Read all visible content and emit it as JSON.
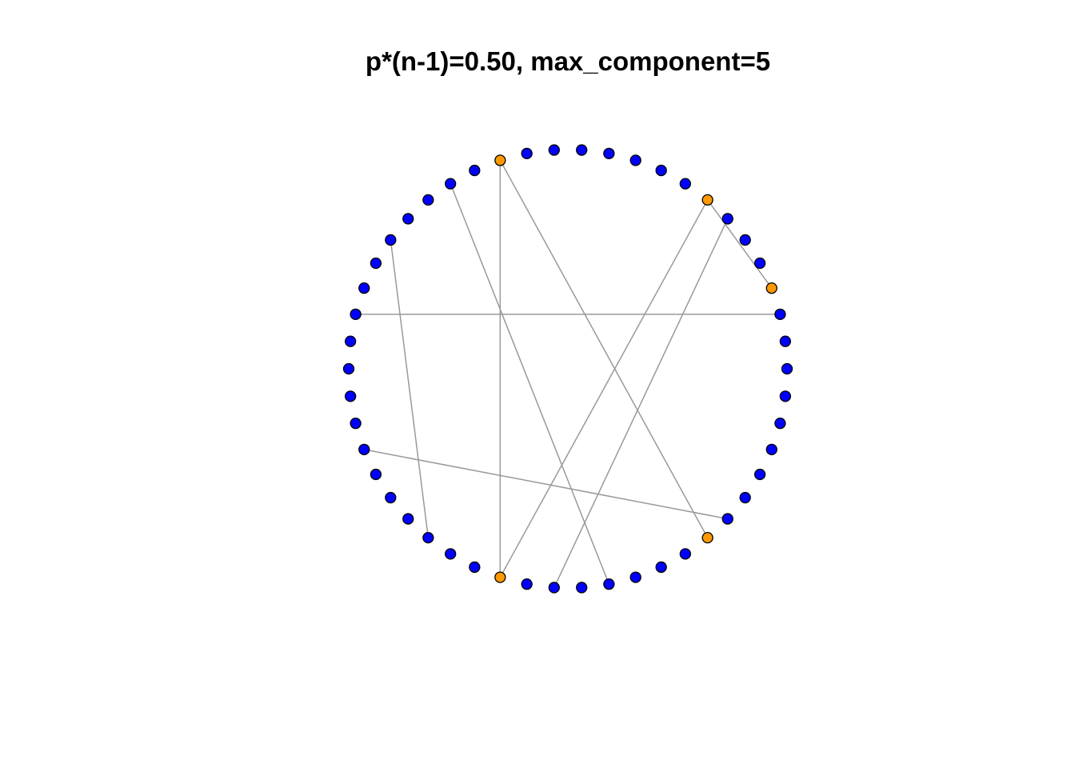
{
  "title": "p*(n-1)=0.50, max_component=5",
  "graph": {
    "layout": "circle",
    "node_count": 50,
    "colors": {
      "node_default": "#0000ff",
      "node_highlight": "#ff9900",
      "node_border": "#000000",
      "edge": "#999999"
    },
    "highlighted_nodes": [
      3,
      7,
      15,
      35,
      43
    ],
    "edges": [
      [
        3,
        7
      ],
      [
        7,
        35
      ],
      [
        35,
        15
      ],
      [
        15,
        43
      ],
      [
        2,
        23
      ],
      [
        6,
        37
      ],
      [
        17,
        39
      ],
      [
        20,
        32
      ],
      [
        28,
        44
      ]
    ]
  }
}
